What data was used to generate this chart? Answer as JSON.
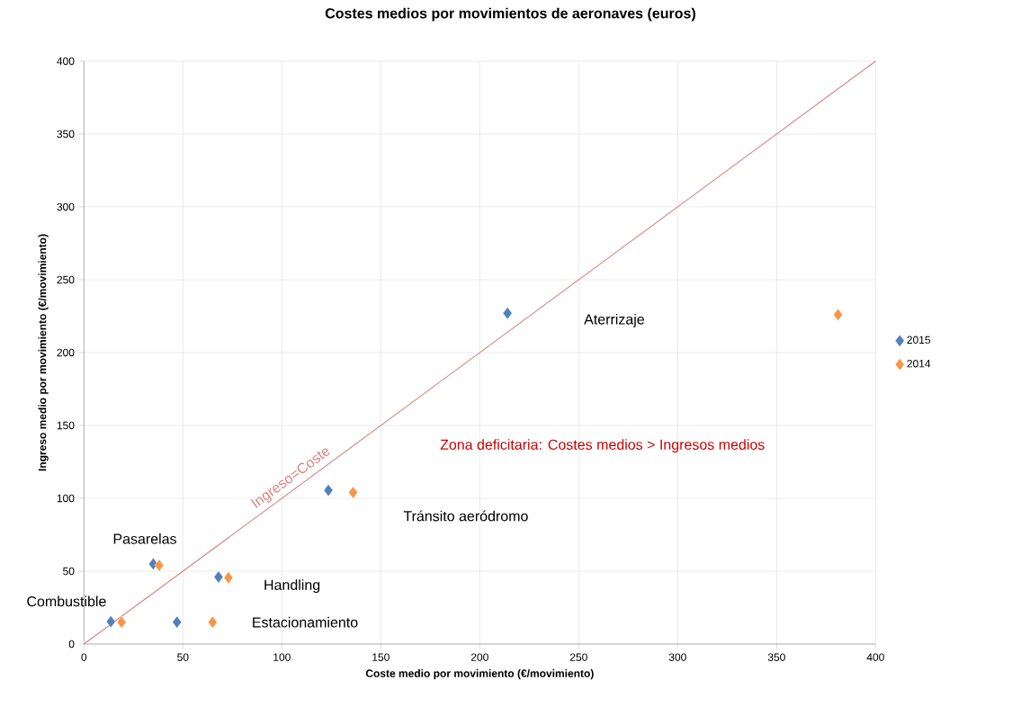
{
  "chart_data": {
    "type": "scatter",
    "title": "Costes medios por movimientos de aeronaves (euros)",
    "xlabel": "Coste medio por movimiento (€/movimiento)",
    "ylabel": "Ingreso medio por movimiento (€/movimiento)",
    "xlim": [
      0,
      400
    ],
    "ylim": [
      0,
      400
    ],
    "xticks": [
      0,
      50,
      100,
      150,
      200,
      250,
      300,
      350,
      400
    ],
    "yticks": [
      0,
      50,
      100,
      150,
      200,
      250,
      300,
      350,
      400
    ],
    "grid": true,
    "legend": "right",
    "marker": "diamond",
    "series": [
      {
        "name": "2015",
        "color": "#4f81bd",
        "x": [
          13.6,
          47,
          35,
          68,
          123.5,
          214
        ],
        "values": [
          15.4,
          15,
          55,
          46,
          105.5,
          227
        ]
      },
      {
        "name": "2014",
        "color": "#f79646",
        "x": [
          19,
          65,
          38,
          73,
          136,
          381
        ],
        "values": [
          15,
          15,
          54,
          45.5,
          104,
          226
        ]
      },
      {
        "name": "Ingreso=Coste",
        "type": "line",
        "marker": "none",
        "color": "#d9837f",
        "x": [
          0,
          400
        ],
        "values": [
          0,
          400
        ]
      }
    ],
    "annotations": [
      {
        "text": "Pasarelas",
        "x": 35,
        "y": 55
      },
      {
        "text": "Handling",
        "x": 73,
        "y": 45.5
      },
      {
        "text": "Estacionamiento",
        "x": 65,
        "y": 15
      },
      {
        "text": "Combustible",
        "x": 13.6,
        "y": 15.4
      },
      "Aterrizaje",
      "Tránsito aeródromo",
      "Zona deficitaria: Costes medios > Ingresos medios"
    ]
  }
}
